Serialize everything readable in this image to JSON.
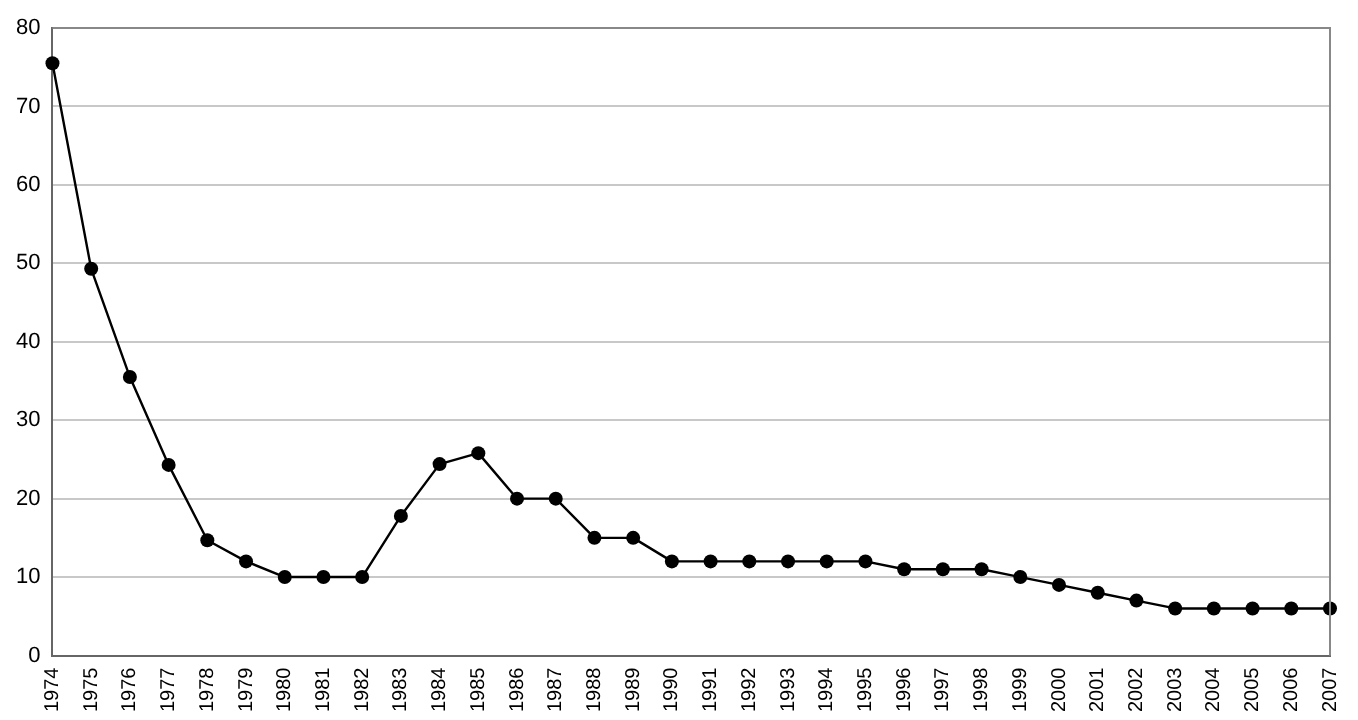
{
  "chart_data": {
    "type": "line",
    "categories": [
      "1974",
      "1975",
      "1976",
      "1977",
      "1978",
      "1979",
      "1980",
      "1981",
      "1982",
      "1983",
      "1984",
      "1985",
      "1986",
      "1987",
      "1988",
      "1989",
      "1990",
      "1991",
      "1992",
      "1993",
      "1994",
      "1995",
      "1996",
      "1997",
      "1998",
      "1999",
      "2000",
      "2001",
      "2002",
      "2003",
      "2004",
      "2005",
      "2006",
      "2007"
    ],
    "series": [
      {
        "color": "#000000",
        "values": [
          75.5,
          49.3,
          35.5,
          24.3,
          14.7,
          12,
          10,
          10,
          10,
          17.8,
          24.4,
          25.8,
          20,
          20,
          15,
          15,
          12,
          12,
          12,
          12,
          12,
          12,
          11,
          11,
          11,
          10,
          9,
          8,
          7,
          6,
          6,
          6,
          6,
          6
        ]
      }
    ],
    "ylim": [
      0,
      80
    ],
    "yticks": [
      0,
      10,
      20,
      30,
      40,
      50,
      60,
      70,
      80
    ],
    "grid": "y",
    "legend": false,
    "marker": "circle",
    "line_style": "solid"
  }
}
